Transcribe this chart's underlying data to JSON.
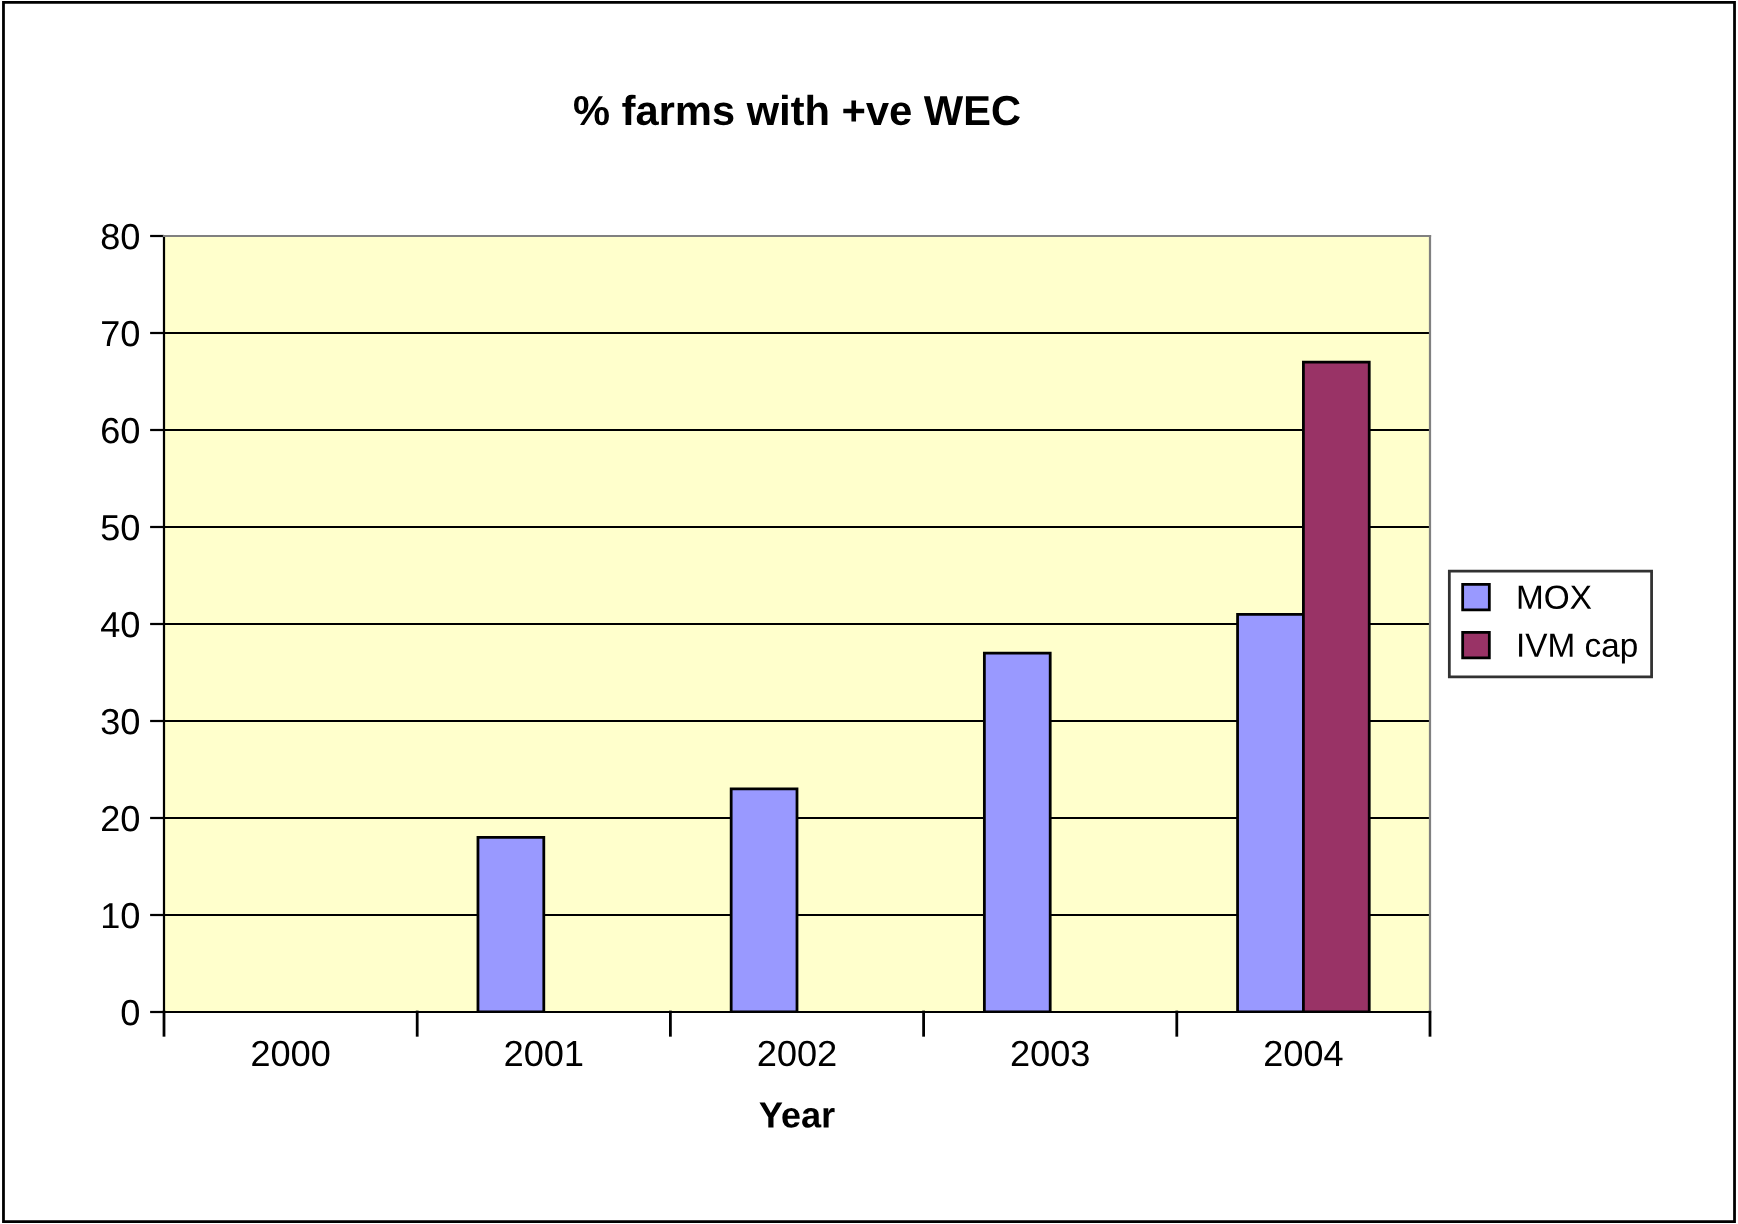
{
  "chart_data": {
    "type": "bar",
    "title": "% farms with +ve WEC",
    "xlabel": "Year",
    "categories": [
      "2000",
      "2001",
      "2002",
      "2003",
      "2004"
    ],
    "series": [
      {
        "name": "MOX",
        "color": "#9999ff",
        "values": [
          null,
          18,
          23,
          37,
          41
        ]
      },
      {
        "name": "IVM cap",
        "color": "#993366",
        "values": [
          null,
          null,
          null,
          null,
          67
        ]
      }
    ],
    "ylim": [
      0,
      80
    ],
    "yticks": [
      0,
      10,
      20,
      30,
      40,
      50,
      60,
      70,
      80
    ],
    "grid": "y",
    "legend": "right"
  }
}
